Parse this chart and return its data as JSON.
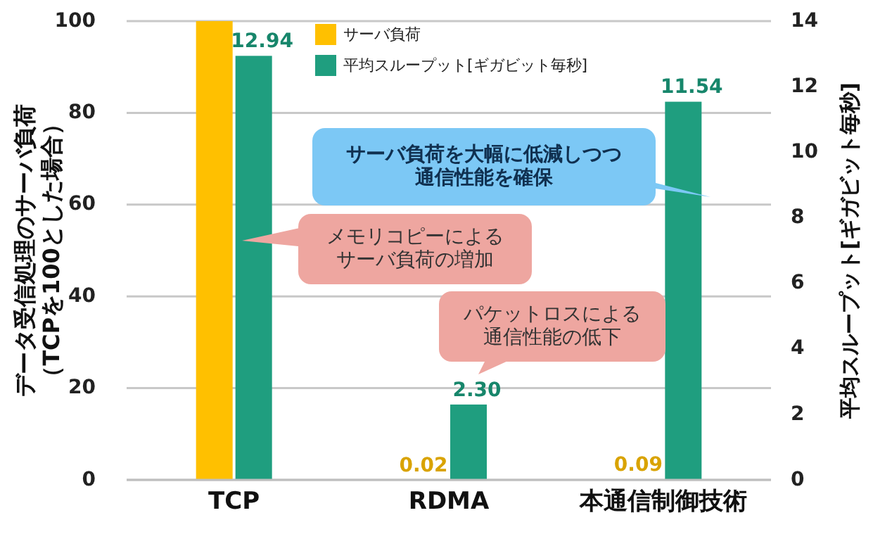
{
  "chart_data": {
    "type": "bar",
    "categories": [
      "TCP",
      "RDMA",
      "本通信制御技術"
    ],
    "series": [
      {
        "name": "サーバ負荷",
        "color": "#ffc000",
        "values": [
          100,
          0.02,
          0.09
        ],
        "value_labels": [
          null,
          "0.02",
          "0.09"
        ]
      },
      {
        "name": "平均スループット[ギガビット毎秒]",
        "color": "#1f9e7f",
        "values": [
          12.94,
          2.3,
          11.54
        ],
        "axis": "y2",
        "value_labels": [
          "12.94",
          "2.30",
          "11.54"
        ]
      }
    ],
    "ylabel": "データ受信処理のサーバ負荷（TCPを100とした場合）",
    "y2label": "平均スループット[ギガビット毎秒]",
    "ylim": [
      0,
      100
    ],
    "yticks": [
      0,
      20,
      40,
      60,
      80,
      100
    ],
    "y2lim": [
      0,
      14
    ],
    "y2ticks": [
      0,
      2,
      4,
      6,
      8,
      10,
      12,
      14
    ],
    "grid": true,
    "legend": "top",
    "annotations": [
      "サーバ負荷を大幅に低減しつつ通信性能を確保",
      "メモリコピーによるサーバ負荷の増加",
      "パケットロスによる通信性能の低下"
    ]
  }
}
